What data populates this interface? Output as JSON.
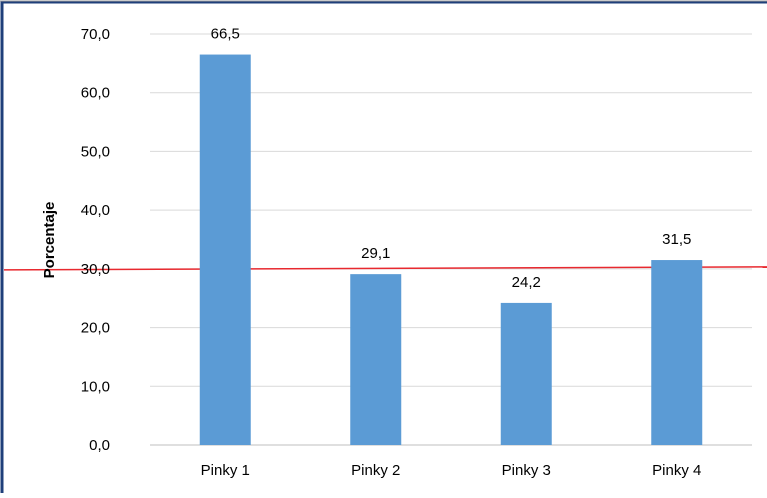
{
  "chart_data": {
    "type": "bar",
    "categories": [
      "Pinky 1",
      "Pinky 2",
      "Pinky 3",
      "Pinky 4"
    ],
    "values": [
      66.5,
      29.1,
      24.2,
      31.5
    ],
    "value_labels": [
      "66,5",
      "29,1",
      "24,2",
      "31,5"
    ],
    "title": "",
    "xlabel": "",
    "ylabel": "Porcentaje",
    "ylim": [
      0,
      70
    ],
    "yticks": [
      0,
      10,
      20,
      30,
      40,
      50,
      60,
      70
    ],
    "ytick_labels": [
      "0,0",
      "10,0",
      "20,0",
      "30,0",
      "40,0",
      "50,0",
      "60,0",
      "70,0"
    ],
    "grid": true,
    "legend": "none",
    "reference_line": {
      "value": 30,
      "color": "#e8292f"
    },
    "colors": {
      "bar": "#5b9bd5",
      "frame": "#1f3f7a",
      "grid": "#d9d9d9",
      "axis": "#bfbfbf",
      "text": "#000000"
    }
  }
}
